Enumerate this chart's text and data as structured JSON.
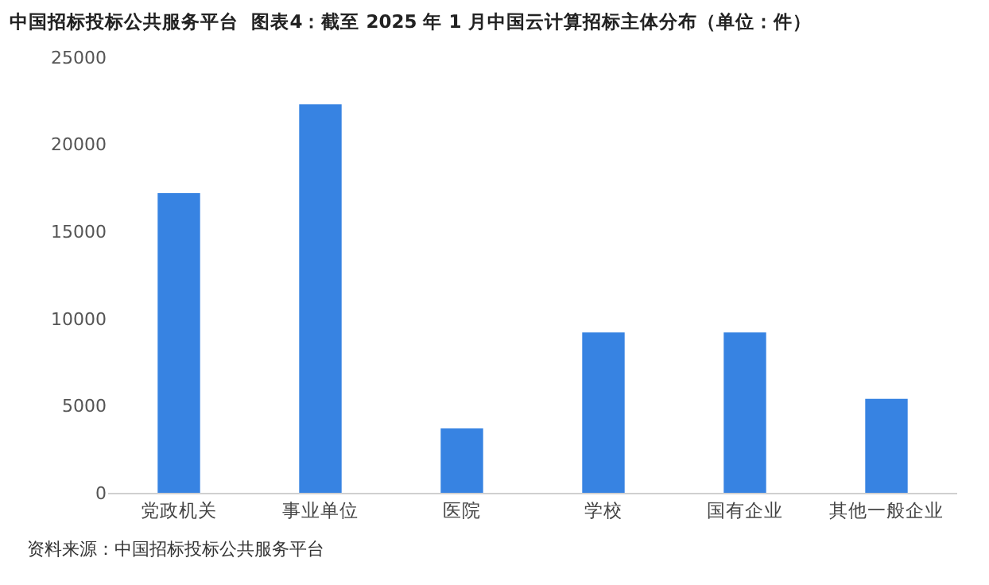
{
  "chart_data": {
    "type": "bar",
    "title": "中国招标投标公共服务平台  图表4：截至 2025 年 1 月中国云计算招标主体分布（单位：件）",
    "categories": [
      "党政机关",
      "事业单位",
      "医院",
      "学校",
      "国有企业",
      "其他一般企业"
    ],
    "values": [
      17200,
      22300,
      3700,
      9200,
      9200,
      5400
    ],
    "color": "#3783e2",
    "ylim": [
      0,
      25000
    ],
    "yticks": [
      0,
      5000,
      10000,
      15000,
      20000,
      25000
    ],
    "grid": false,
    "annotations": [
      "资料来源：中国招标投标公共服务平台"
    ]
  }
}
